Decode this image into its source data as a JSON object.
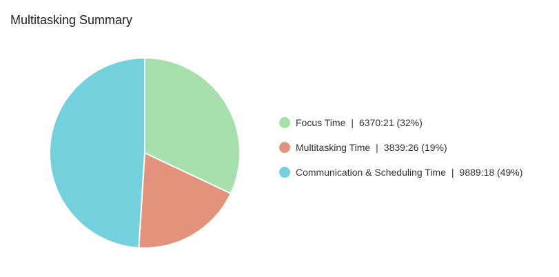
{
  "chart_data": {
    "type": "pie",
    "title": "Multitasking Summary",
    "slices": [
      {
        "label": "Focus Time",
        "value_text": "6370:21",
        "percent": 32,
        "percent_text": "(32%)",
        "color": "#a6dfab"
      },
      {
        "label": "Multitasking Time",
        "value_text": "3839:26",
        "percent": 19,
        "percent_text": "(19%)",
        "color": "#e3927c"
      },
      {
        "label": "Communication & Scheduling Time",
        "value_text": "9889:18",
        "percent": 49,
        "percent_text": "(49%)",
        "color": "#72d1dc"
      }
    ],
    "legend_separator": "|",
    "legend_position": "right"
  }
}
